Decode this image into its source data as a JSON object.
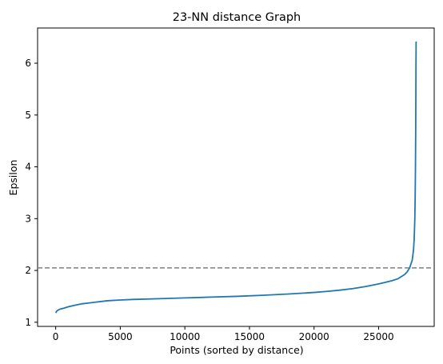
{
  "chart_data": {
    "type": "line",
    "title": "23-NN distance Graph",
    "xlabel": "Points (sorted by distance)",
    "ylabel": "Epsilon",
    "xlim": [
      -1400,
      29300
    ],
    "ylim": [
      0.92,
      6.68
    ],
    "xticks": [
      0,
      5000,
      10000,
      15000,
      20000,
      25000
    ],
    "xtick_labels": [
      "0",
      "5000",
      "10000",
      "15000",
      "20000",
      "25000"
    ],
    "yticks": [
      1,
      2,
      3,
      4,
      5,
      6
    ],
    "ytick_labels": [
      "1",
      "2",
      "3",
      "4",
      "5",
      "6"
    ],
    "grid": false,
    "series": [
      {
        "color": "#1f77b4",
        "x": [
          0,
          100,
          300,
          600,
          1000,
          1500,
          2000,
          2500,
          3000,
          3500,
          4000,
          5000,
          6000,
          8000,
          10000,
          12000,
          14000,
          16000,
          18000,
          20000,
          21000,
          22000,
          23000,
          24000,
          25000,
          25500,
          26000,
          26500,
          27000,
          27200,
          27400,
          27600,
          27700,
          27750,
          27800,
          27830,
          27850,
          27870,
          27880,
          27890,
          27900
        ],
        "y": [
          1.18,
          1.22,
          1.25,
          1.27,
          1.3,
          1.33,
          1.355,
          1.37,
          1.385,
          1.4,
          1.415,
          1.43,
          1.44,
          1.455,
          1.47,
          1.485,
          1.5,
          1.52,
          1.545,
          1.575,
          1.595,
          1.62,
          1.65,
          1.69,
          1.74,
          1.77,
          1.8,
          1.84,
          1.92,
          1.97,
          2.05,
          2.2,
          2.4,
          2.6,
          3.0,
          3.5,
          4.0,
          4.8,
          5.4,
          6.0,
          6.42
        ]
      }
    ],
    "reference_line": {
      "orientation": "horizontal",
      "y": 2.05,
      "style": "dashed",
      "color": "#808080"
    }
  }
}
